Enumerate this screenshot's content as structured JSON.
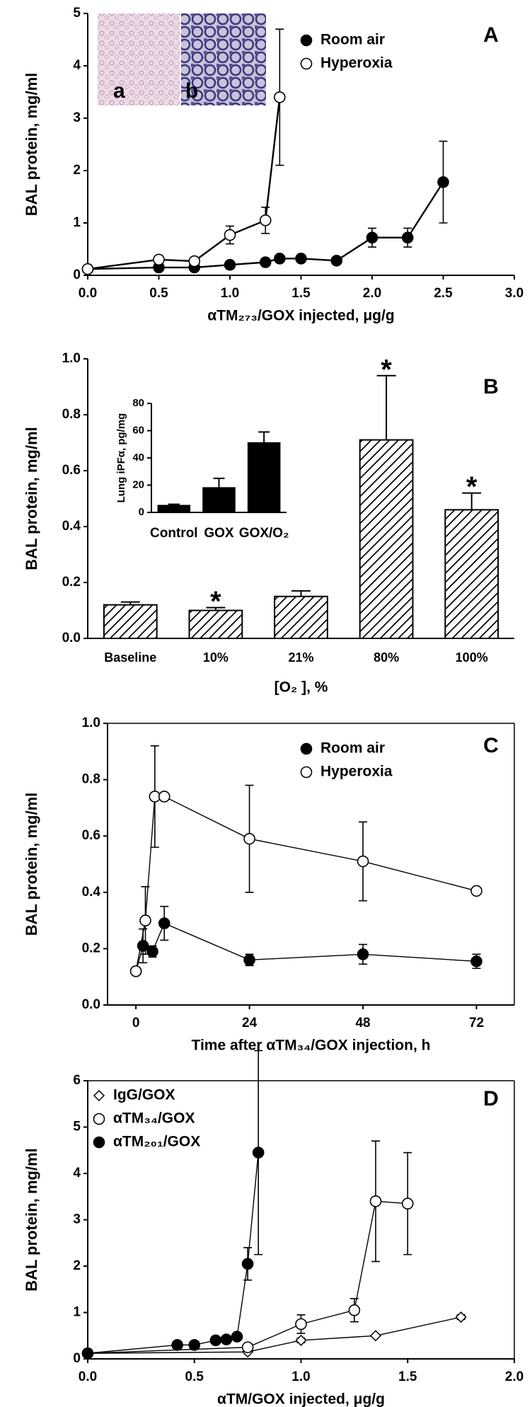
{
  "chart_data": [
    {
      "type": "line",
      "panel": "A",
      "x_label": "αTM₂₇₃/GOX injected, μg/g",
      "y_label": "BAL protein, mg/ml",
      "image_labels": [
        "a",
        "b"
      ],
      "xlim": [
        0,
        3
      ],
      "xticks": [
        {
          "value": 0,
          "label": "0.0"
        },
        0.5,
        {
          "value": 1,
          "label": "1.0"
        },
        1.5,
        {
          "value": 2,
          "label": "2.0"
        },
        2.5,
        {
          "value": 3,
          "label": "3.0"
        }
      ],
      "ylim": [
        0,
        5
      ],
      "yticks": [
        0,
        1,
        2,
        3,
        4,
        5
      ],
      "frame": false,
      "legend": "upper right",
      "series": [
        {
          "name": "Room air",
          "marker": "filled",
          "color": "#000000",
          "x": [
            0,
            0.5,
            0.75,
            1.0,
            1.25,
            1.35,
            1.5,
            1.75,
            2.0,
            2.25,
            2.5
          ],
          "values": [
            0.12,
            0.15,
            0.15,
            0.2,
            0.25,
            0.32,
            0.32,
            0.28,
            0.72,
            0.72,
            1.78
          ],
          "errors": [
            null,
            null,
            null,
            null,
            null,
            0.05,
            0.05,
            null,
            0.18,
            0.18,
            0.78
          ]
        },
        {
          "name": "Hyperoxia",
          "marker": "open",
          "color": "#000000",
          "x": [
            0,
            0.5,
            0.75,
            1.0,
            1.25,
            1.35
          ],
          "values": [
            0.12,
            0.3,
            0.27,
            0.77,
            1.05,
            3.4
          ],
          "errors": [
            null,
            0.05,
            0.05,
            0.17,
            0.25,
            1.3
          ]
        }
      ]
    },
    {
      "type": "bar",
      "panel": "B",
      "x_label": "[O₂ ], %",
      "y_label": "BAL protein, mg/ml",
      "hatch": true,
      "color": "#000000",
      "categories": [
        "Baseline",
        "10%",
        "21%",
        "80%",
        "100%"
      ],
      "values": [
        0.12,
        0.1,
        0.15,
        0.71,
        0.46
      ],
      "errors": [
        0.01,
        0.01,
        0.02,
        0.23,
        0.06
      ],
      "value_annotations": [
        null,
        "*",
        null,
        "*",
        "*"
      ],
      "ylim": [
        0,
        1
      ],
      "yticks": [
        {
          "value": 0,
          "label": "0.0"
        },
        0.2,
        0.4,
        0.6,
        0.8,
        {
          "value": 1,
          "label": "1.0"
        }
      ],
      "frame": false
    },
    {
      "type": "bar",
      "y_label": "Lung iPFα, pg/mg",
      "hatch": false,
      "color": "#000000",
      "categories": [
        "Control",
        "GOX",
        "GOX/O₂"
      ],
      "values": [
        5,
        18,
        51
      ],
      "errors": [
        1,
        7,
        8
      ],
      "ylim": [
        0,
        80
      ],
      "yticks": [
        0,
        20,
        40,
        60,
        80
      ],
      "frame": false
    },
    {
      "type": "line",
      "panel": "C",
      "x_label": "Time after αTM₃₄/GOX injection, h",
      "y_label": "BAL protein, mg/ml",
      "xlim": [
        -6,
        80
      ],
      "xticks": [
        0,
        24,
        48,
        72
      ],
      "ylim": [
        0,
        1
      ],
      "yticks": [
        {
          "value": 0,
          "label": "0.0"
        },
        0.2,
        0.4,
        0.6,
        0.8,
        {
          "value": 1,
          "label": "1.0"
        }
      ],
      "frame": true,
      "legend": "upper right",
      "series": [
        {
          "name": "Room air",
          "marker": "filled",
          "color": "#000000",
          "x": [
            0,
            1.5,
            3.5,
            6,
            24,
            48,
            72
          ],
          "values": [
            0.12,
            0.21,
            0.19,
            0.29,
            0.16,
            0.18,
            0.155
          ],
          "errors": [
            null,
            0.06,
            0.02,
            0.06,
            0.02,
            0.035,
            0.025
          ]
        },
        {
          "name": "Hyperoxia",
          "marker": "open",
          "color": "#000000",
          "x": [
            0,
            2,
            4,
            6,
            24,
            48,
            72
          ],
          "values": [
            0.12,
            0.3,
            0.74,
            0.74,
            0.59,
            0.51,
            0.405
          ],
          "errors": [
            null,
            0.12,
            0.18,
            null,
            0.19,
            0.14,
            null
          ]
        }
      ]
    },
    {
      "type": "line",
      "panel": "D",
      "x_label": "αTM/GOX injected, μg/g",
      "y_label": "BAL protein, mg/ml",
      "xlim": [
        0,
        2
      ],
      "xticks": [
        {
          "value": 0,
          "label": "0.0"
        },
        0.5,
        {
          "value": 1,
          "label": "1.0"
        },
        1.5,
        {
          "value": 2,
          "label": "2.0"
        }
      ],
      "ylim": [
        0,
        6
      ],
      "yticks": [
        0,
        1,
        2,
        3,
        4,
        5,
        6
      ],
      "frame": true,
      "legend": "upper left",
      "series": [
        {
          "name": "IgG/GOX",
          "marker": "diamond",
          "color": "#000000",
          "x": [
            0,
            0.75,
            1.0,
            1.35,
            1.75
          ],
          "values": [
            0.12,
            0.15,
            0.4,
            0.5,
            0.9
          ],
          "errors": [
            null,
            null,
            0.05,
            null,
            0.05
          ]
        },
        {
          "name": "αTM₃₄/GOX",
          "marker": "open",
          "color": "#000000",
          "x": [
            0,
            0.75,
            1.0,
            1.25,
            1.35,
            1.5
          ],
          "values": [
            0.12,
            0.25,
            0.75,
            1.05,
            3.4,
            3.35
          ],
          "errors": [
            null,
            null,
            0.2,
            0.25,
            1.3,
            1.1
          ]
        },
        {
          "name": "αTM₂₀₁/GOX",
          "marker": "filled",
          "color": "#000000",
          "x": [
            0,
            0.42,
            0.5,
            0.6,
            0.65,
            0.7,
            0.75,
            0.8
          ],
          "values": [
            0.12,
            0.3,
            0.3,
            0.4,
            0.42,
            0.48,
            2.05,
            4.45
          ],
          "errors": [
            null,
            null,
            null,
            null,
            null,
            null,
            0.35,
            2.2
          ]
        }
      ]
    }
  ]
}
